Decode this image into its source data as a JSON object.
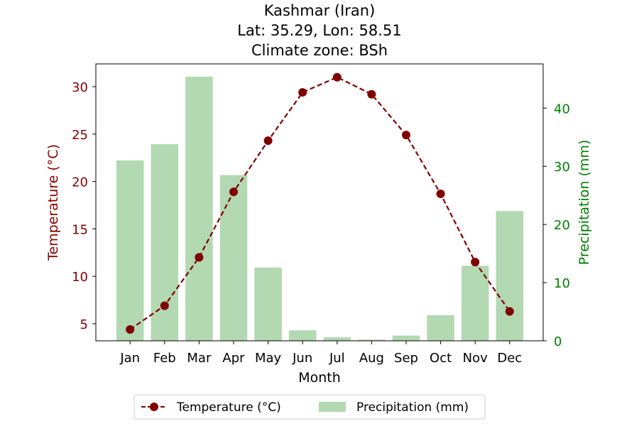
{
  "chart_data": {
    "type": "bar+line",
    "title_lines": [
      "Kashmar (Iran)",
      "Lat: 35.29, Lon: 58.51",
      "Climate zone: BSh"
    ],
    "xlabel": "Month",
    "y_left_label": "Temperature (°C)",
    "y_right_label": "Precipitation (mm)",
    "categories": [
      "Jan",
      "Feb",
      "Mar",
      "Apr",
      "May",
      "Jun",
      "Jul",
      "Aug",
      "Sep",
      "Oct",
      "Nov",
      "Dec"
    ],
    "y_left_ticks": [
      5,
      10,
      15,
      20,
      25,
      30
    ],
    "y_right_ticks": [
      0,
      10,
      20,
      30,
      40
    ],
    "y_left_lim": [
      3.2,
      32.4
    ],
    "y_right_lim": [
      0,
      47.6
    ],
    "series": [
      {
        "name": "Temperature (°C)",
        "kind": "line",
        "axis": "left",
        "color": "#800000",
        "line_style": "dashed",
        "marker": "circle",
        "values": [
          4.4,
          6.9,
          12.0,
          18.9,
          24.3,
          29.4,
          31.0,
          29.2,
          24.9,
          18.7,
          11.5,
          6.3
        ]
      },
      {
        "name": "Precipitation (mm)",
        "kind": "bar",
        "axis": "right",
        "color": "#b2d9b2",
        "values": [
          31.0,
          33.8,
          45.4,
          28.5,
          12.6,
          1.8,
          0.6,
          0.2,
          0.9,
          4.4,
          12.9,
          22.3
        ]
      }
    ],
    "legend_position": "bottom-center",
    "left_axis_color": "#8b0000",
    "right_axis_color": "#008000"
  }
}
